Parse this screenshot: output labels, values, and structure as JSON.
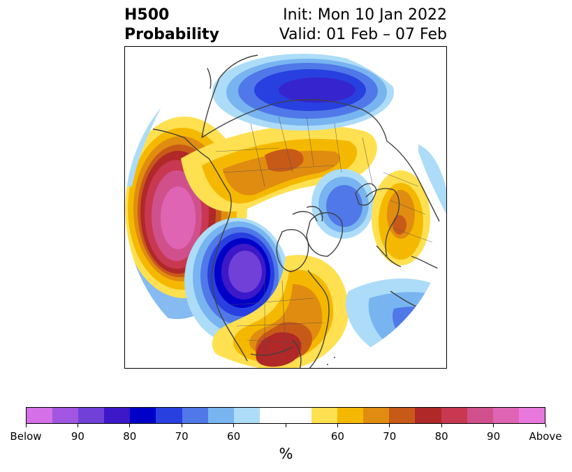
{
  "title": {
    "left_line1": "H500",
    "left_line2": "Probability",
    "right_line1": "Init: Mon 10 Jan 2022",
    "right_line2": "Valid: 01 Feb – 07 Feb"
  },
  "colorbar": {
    "segments": [
      "#d670e8",
      "#a056e0",
      "#7040d8",
      "#3c18c8",
      "#0000c8",
      "#2840e0",
      "#5078e8",
      "#78b4f0",
      "#acdcf8",
      "#ffffff",
      "#ffffff",
      "#ffe050",
      "#f5b800",
      "#e08c10",
      "#c85a18",
      "#b02828",
      "#c83850",
      "#d0508c",
      "#e064b4",
      "#e878dc"
    ],
    "labels": [
      "Below",
      "90",
      "80",
      "70",
      "60",
      "60",
      "70",
      "80",
      "90",
      "Above"
    ],
    "unit": "%"
  },
  "map": {
    "projection": "polar stereographic, North Pole",
    "features": [
      "North America",
      "Greenland",
      "Europe",
      "Asia",
      "North Pacific",
      "North Atlantic"
    ]
  }
}
